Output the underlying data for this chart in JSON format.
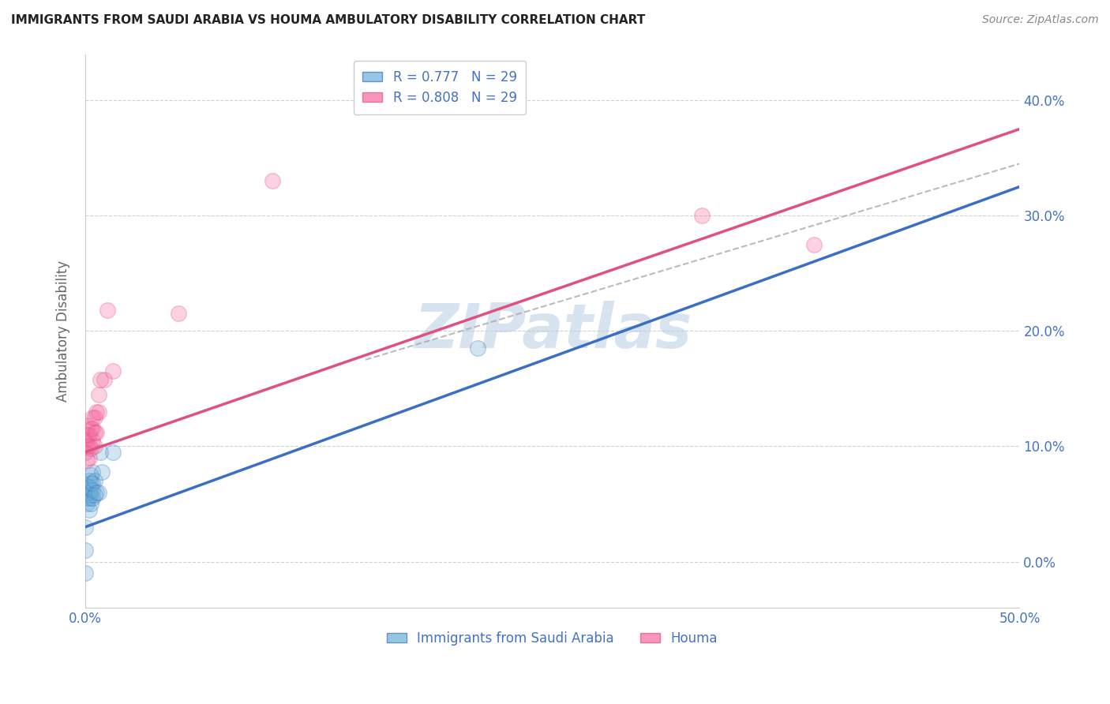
{
  "title": "IMMIGRANTS FROM SAUDI ARABIA VS HOUMA AMBULATORY DISABILITY CORRELATION CHART",
  "source": "Source: ZipAtlas.com",
  "xlabel_label": "Immigrants from Saudi Arabia",
  "ylabel_label": "Ambulatory Disability",
  "xlim": [
    0.0,
    0.5
  ],
  "ylim": [
    -0.04,
    0.44
  ],
  "xticks": [
    0.0,
    0.1,
    0.2,
    0.3,
    0.4,
    0.5
  ],
  "yticks": [
    0.0,
    0.1,
    0.2,
    0.3,
    0.4
  ],
  "legend_entries": [
    {
      "color": "#6baed6",
      "R": "0.777",
      "N": "29"
    },
    {
      "color": "#f768a1",
      "R": "0.808",
      "N": "29"
    }
  ],
  "watermark": "ZIPatlas",
  "line_blue": "#3a6fc4",
  "line_pink": "#e05080",
  "dot_color_blue": "#6baed6",
  "dot_color_pink": "#f768a1",
  "blue_points_x": [
    0.0,
    0.0,
    0.001,
    0.001,
    0.001,
    0.001,
    0.002,
    0.002,
    0.002,
    0.002,
    0.002,
    0.003,
    0.003,
    0.003,
    0.003,
    0.003,
    0.004,
    0.004,
    0.004,
    0.004,
    0.005,
    0.005,
    0.006,
    0.007,
    0.008,
    0.009,
    0.015,
    0.21,
    0.0
  ],
  "blue_points_y": [
    -0.01,
    0.03,
    0.05,
    0.055,
    0.06,
    0.065,
    0.045,
    0.055,
    0.06,
    0.065,
    0.07,
    0.05,
    0.058,
    0.063,
    0.068,
    0.075,
    0.055,
    0.062,
    0.068,
    0.078,
    0.058,
    0.07,
    0.06,
    0.06,
    0.095,
    0.078,
    0.095,
    0.185,
    0.01
  ],
  "pink_points_x": [
    0.0,
    0.0,
    0.001,
    0.001,
    0.001,
    0.001,
    0.002,
    0.002,
    0.002,
    0.003,
    0.003,
    0.004,
    0.004,
    0.004,
    0.005,
    0.005,
    0.005,
    0.006,
    0.006,
    0.007,
    0.007,
    0.008,
    0.01,
    0.012,
    0.015,
    0.05,
    0.33,
    0.39,
    0.1
  ],
  "pink_points_y": [
    0.095,
    0.105,
    0.088,
    0.1,
    0.11,
    0.118,
    0.09,
    0.1,
    0.11,
    0.098,
    0.115,
    0.105,
    0.115,
    0.125,
    0.1,
    0.112,
    0.125,
    0.112,
    0.13,
    0.13,
    0.145,
    0.158,
    0.158,
    0.218,
    0.165,
    0.215,
    0.3,
    0.275,
    0.33
  ],
  "blue_line_x": [
    0.0,
    0.5
  ],
  "blue_line_y": [
    0.03,
    0.325
  ],
  "pink_line_x": [
    0.0,
    0.5
  ],
  "pink_line_y": [
    0.095,
    0.375
  ],
  "dashed_line_x": [
    0.15,
    0.5
  ],
  "dashed_line_y": [
    0.175,
    0.345
  ],
  "background_color": "#ffffff",
  "grid_color": "#cccccc",
  "tick_label_color": "#4472c4",
  "title_color": "#222222",
  "marker_size": 200,
  "alpha_fill": 0.3
}
